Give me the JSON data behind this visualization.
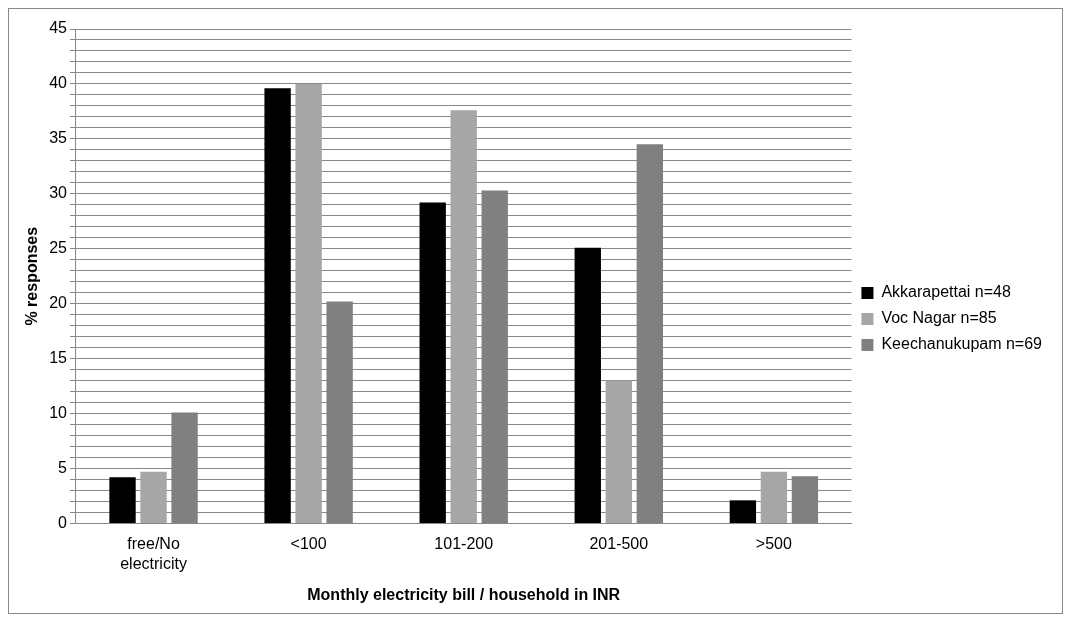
{
  "chart_data": {
    "type": "bar",
    "xlabel": "Monthly electricity bill / household in INR",
    "ylabel": "% responses",
    "categories": [
      "free/No electricity",
      "<100",
      "101-200",
      "201-500",
      ">500"
    ],
    "series": [
      {
        "name": "Akkarapettai n=48",
        "color": "#000000",
        "values": [
          4.2,
          39.6,
          29.2,
          25.1,
          2.1
        ]
      },
      {
        "name": "Voc Nagar n=85",
        "color": "#a6a6a6",
        "values": [
          4.7,
          40,
          37.6,
          13.0,
          4.7
        ]
      },
      {
        "name": "Keechanukupam n=69",
        "color": "#808080",
        "values": [
          10.1,
          20.2,
          30.3,
          34.5,
          4.3
        ]
      }
    ],
    "ylim": [
      0,
      45
    ],
    "yticks": [
      0,
      {
        "value": 1,
        "label": null
      },
      {
        "value": 2,
        "label": null
      },
      {
        "value": 3,
        "label": null
      },
      {
        "value": 4,
        "label": null
      },
      5,
      {
        "value": 6,
        "label": null
      },
      {
        "value": 7,
        "label": null
      },
      {
        "value": 8,
        "label": null
      },
      {
        "value": 9,
        "label": null
      },
      10,
      {
        "value": 11,
        "label": null
      },
      {
        "value": 12,
        "label": null
      },
      {
        "value": 13,
        "label": null
      },
      {
        "value": 14,
        "label": null
      },
      15,
      {
        "value": 16,
        "label": null
      },
      {
        "value": 17,
        "label": null
      },
      {
        "value": 18,
        "label": null
      },
      {
        "value": 19,
        "label": null
      },
      20,
      {
        "value": 21,
        "label": null
      },
      {
        "value": 22,
        "label": null
      },
      {
        "value": 23,
        "label": null
      },
      {
        "value": 24,
        "label": null
      },
      25,
      {
        "value": 26,
        "label": null
      },
      {
        "value": 27,
        "label": null
      },
      {
        "value": 28,
        "label": null
      },
      {
        "value": 29,
        "label": null
      },
      30,
      {
        "value": 31,
        "label": null
      },
      {
        "value": 32,
        "label": null
      },
      {
        "value": 33,
        "label": null
      },
      {
        "value": 34,
        "label": null
      },
      35,
      {
        "value": 36,
        "label": null
      },
      {
        "value": 37,
        "label": null
      },
      {
        "value": 38,
        "label": null
      },
      {
        "value": 39,
        "label": null
      },
      40,
      {
        "value": 41,
        "label": null
      },
      {
        "value": 42,
        "label": null
      },
      {
        "value": 43,
        "label": null
      },
      {
        "value": 44,
        "label": null
      },
      45
    ],
    "grid": "y",
    "legend": "right"
  }
}
